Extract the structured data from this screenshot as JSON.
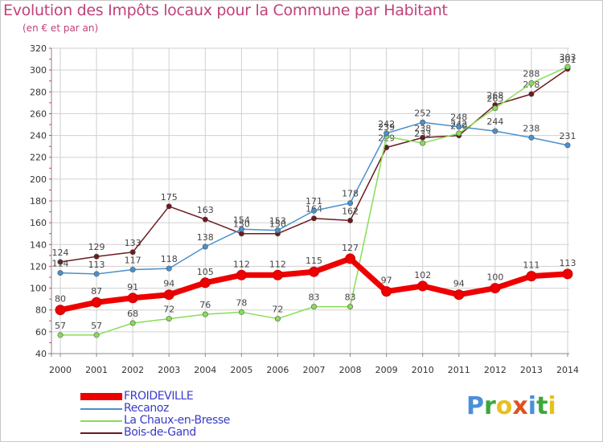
{
  "title": "Evolution des Impôts locaux pour la Commune par Habitant",
  "subtitle": "(en € et par an)",
  "logo": {
    "p": "P",
    "r": "r",
    "o": "o",
    "x": "x",
    "i1": "i",
    "t": "t",
    "i2": "i"
  },
  "chart_data": {
    "type": "line",
    "title": "Evolution des Impôts locaux pour la Commune par Habitant",
    "subtitle": "(en € et par an)",
    "xlabel": "",
    "ylabel": "",
    "x": [
      "2000",
      "2001",
      "2002",
      "2003",
      "2004",
      "2005",
      "2006",
      "2007",
      "2008",
      "2009",
      "2010",
      "2011",
      "2012",
      "2013",
      "2014"
    ],
    "ylim": [
      40,
      320
    ],
    "yticks": [
      40,
      60,
      80,
      100,
      120,
      140,
      160,
      180,
      200,
      220,
      240,
      260,
      280,
      300,
      320
    ],
    "grid": true,
    "legend_position": "bottom-left",
    "series": [
      {
        "name": "FROIDEVILLE",
        "color": "#ee0000",
        "values": [
          80,
          87,
          91,
          94,
          105,
          112,
          112,
          115,
          127,
          97,
          102,
          94,
          100,
          111,
          113
        ]
      },
      {
        "name": "Recanoz",
        "color": "#4a90cc",
        "values": [
          114,
          113,
          117,
          118,
          138,
          154,
          153,
          171,
          178,
          242,
          252,
          248,
          244,
          238,
          231
        ]
      },
      {
        "name": "La Chaux-en-Bresse",
        "color": "#88dd55",
        "values": [
          57,
          57,
          68,
          72,
          76,
          78,
          72,
          83,
          83,
          239,
          233,
          242,
          265,
          288,
          303
        ]
      },
      {
        "name": "Bois-de-Gand",
        "color": "#6b1a20",
        "values": [
          124,
          129,
          133,
          175,
          163,
          150,
          150,
          164,
          162,
          229,
          238,
          240,
          268,
          278,
          301
        ]
      }
    ]
  }
}
